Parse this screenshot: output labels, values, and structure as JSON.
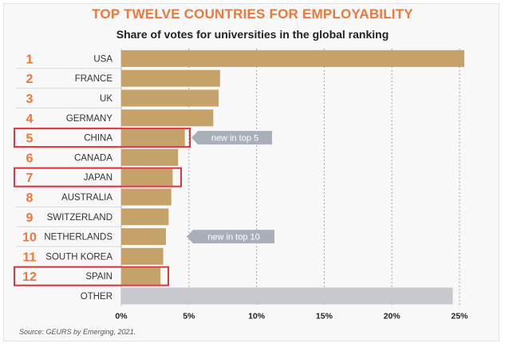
{
  "title": "TOP TWELVE COUNTRIES FOR EMPLOYABILITY",
  "subtitle": "Share of votes for universities in the global ranking",
  "source": "Source: GEURS by Emerging, 2021.",
  "colors": {
    "title": "#f0763a",
    "rank": "#f0763a",
    "bar": "#c4a26a",
    "other_bar": "#c7c9ce",
    "highlight_box": "#e0363b",
    "annotation": "#a9afb8"
  },
  "chart_data": {
    "type": "bar",
    "orientation": "horizontal",
    "title": "TOP TWELVE COUNTRIES FOR EMPLOYABILITY",
    "subtitle": "Share of votes for universities in the global ranking",
    "xlabel": "",
    "ylabel": "",
    "xlim": [
      0,
      25
    ],
    "x_ticks": [
      0,
      5,
      10,
      15,
      20,
      25
    ],
    "x_tick_labels": [
      "0%",
      "5%",
      "10%",
      "15%",
      "20%",
      "25%"
    ],
    "grid": "vertical dotted",
    "unit": "%",
    "categories": [
      {
        "rank": "1",
        "label": "USA",
        "value": 25.8,
        "highlighted": false
      },
      {
        "rank": "2",
        "label": "FRANCE",
        "value": 7.3,
        "highlighted": false
      },
      {
        "rank": "3",
        "label": "UK",
        "value": 7.2,
        "highlighted": false
      },
      {
        "rank": "4",
        "label": "GERMANY",
        "value": 6.8,
        "highlighted": false
      },
      {
        "rank": "5",
        "label": "CHINA",
        "value": 4.7,
        "highlighted": true
      },
      {
        "rank": "6",
        "label": "CANADA",
        "value": 4.2,
        "highlighted": false
      },
      {
        "rank": "7",
        "label": "JAPAN",
        "value": 3.8,
        "highlighted": true
      },
      {
        "rank": "8",
        "label": "AUSTRALIA",
        "value": 3.7,
        "highlighted": false
      },
      {
        "rank": "9",
        "label": "SWITZERLAND",
        "value": 3.5,
        "highlighted": false
      },
      {
        "rank": "10",
        "label": "NETHERLANDS",
        "value": 3.3,
        "highlighted": false
      },
      {
        "rank": "11",
        "label": "SOUTH KOREA",
        "value": 3.1,
        "highlighted": false
      },
      {
        "rank": "12",
        "label": "SPAIN",
        "value": 2.9,
        "highlighted": true
      },
      {
        "rank": "",
        "label": "OTHER",
        "value": 24.5,
        "highlighted": false
      }
    ],
    "annotations": [
      {
        "text": "new in top 5",
        "category": "CHINA"
      },
      {
        "text": "new in top 10",
        "category": "NETHERLANDS"
      }
    ]
  }
}
